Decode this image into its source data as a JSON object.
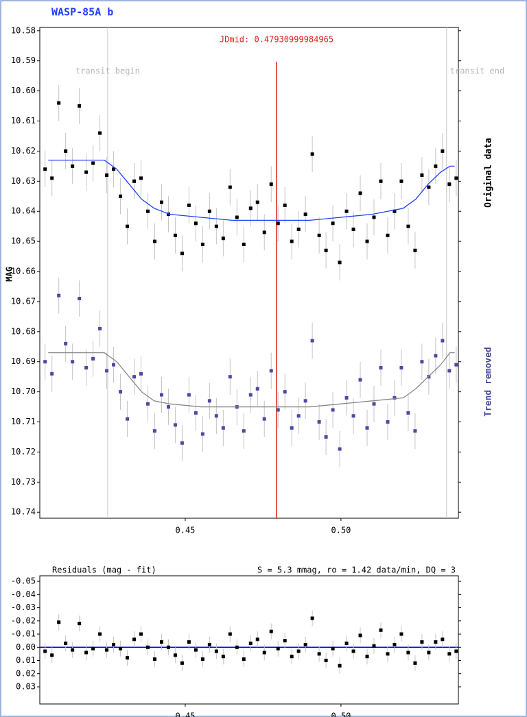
{
  "chart_data": [
    {
      "type": "scatter",
      "title": "WASP-85A b",
      "ylabel": "MAG",
      "xlim": [
        0.4033,
        0.5377
      ],
      "ylim": [
        10.5789,
        10.742
      ],
      "y_inverted": true,
      "xticks": [
        0.45,
        {
          "value": 0.5,
          "label": "0.50"
        }
      ],
      "yticks": [
        10.58,
        10.59,
        {
          "value": 10.6,
          "label": "10.60"
        },
        10.61,
        10.62,
        10.63,
        10.64,
        10.65,
        10.66,
        10.67,
        10.68,
        10.69,
        {
          "value": 10.7,
          "label": "10.70"
        },
        10.71,
        10.72,
        10.73,
        10.74
      ],
      "x": [
        0.405,
        0.4072,
        0.4094,
        0.4116,
        0.4138,
        0.416,
        0.4182,
        0.4204,
        0.4226,
        0.4248,
        0.427,
        0.4292,
        0.4314,
        0.4336,
        0.4358,
        0.438,
        0.4402,
        0.4424,
        0.4446,
        0.4468,
        0.449,
        0.4512,
        0.4534,
        0.4556,
        0.4578,
        0.46,
        0.4622,
        0.4644,
        0.4666,
        0.4688,
        0.471,
        0.4732,
        0.4754,
        0.4776,
        0.4798,
        0.482,
        0.4842,
        0.4864,
        0.4886,
        0.4908,
        0.493,
        0.4952,
        0.4974,
        0.4996,
        0.5018,
        0.504,
        0.5062,
        0.5084,
        0.5106,
        0.5128,
        0.515,
        0.5172,
        0.5194,
        0.5216,
        0.5238,
        0.526,
        0.5282,
        0.5304,
        0.5326,
        0.5348,
        0.537
      ],
      "series": [
        {
          "name": "Original data",
          "color": "#000000",
          "error": 0.006,
          "values": [
            10.626,
            10.629,
            10.604,
            10.62,
            10.625,
            10.605,
            10.627,
            10.624,
            10.614,
            10.628,
            10.626,
            10.635,
            10.645,
            10.63,
            10.629,
            10.64,
            10.65,
            10.637,
            10.641,
            10.648,
            10.654,
            10.638,
            10.644,
            10.651,
            10.64,
            10.645,
            10.649,
            10.632,
            10.642,
            10.651,
            10.639,
            10.637,
            10.647,
            10.631,
            10.644,
            10.638,
            10.65,
            10.646,
            10.641,
            10.621,
            10.648,
            10.653,
            10.644,
            10.657,
            10.64,
            10.646,
            10.634,
            10.65,
            10.642,
            10.63,
            10.648,
            10.64,
            10.63,
            10.645,
            10.653,
            10.628,
            10.632,
            10.625,
            10.62,
            10.631,
            10.629
          ]
        },
        {
          "name": "Trend removed",
          "color": "#4a4aa0",
          "error": 0.006,
          "values": [
            10.69,
            10.694,
            10.668,
            10.684,
            10.69,
            10.669,
            10.692,
            10.689,
            10.679,
            10.693,
            10.691,
            10.7,
            10.709,
            10.695,
            10.694,
            10.704,
            10.713,
            10.701,
            10.705,
            10.711,
            10.717,
            10.701,
            10.707,
            10.714,
            10.703,
            10.708,
            10.712,
            10.695,
            10.705,
            10.713,
            10.701,
            10.699,
            10.709,
            10.693,
            10.706,
            10.7,
            10.712,
            10.708,
            10.703,
            10.683,
            10.71,
            10.715,
            10.706,
            10.719,
            10.702,
            10.708,
            10.696,
            10.712,
            10.704,
            10.692,
            10.71,
            10.702,
            10.692,
            10.707,
            10.713,
            10.69,
            10.695,
            10.688,
            10.683,
            10.693,
            10.691
          ]
        }
      ],
      "fits": [
        {
          "color": "#1f3fff",
          "x": [
            0.406,
            0.424,
            0.428,
            0.432,
            0.436,
            0.44,
            0.445,
            0.455,
            0.465,
            0.4793,
            0.49,
            0.5,
            0.51,
            0.52,
            0.524,
            0.528,
            0.532,
            0.535,
            0.5365
          ],
          "values": [
            10.623,
            10.623,
            10.626,
            10.631,
            10.636,
            10.639,
            10.641,
            10.642,
            10.643,
            10.643,
            10.643,
            10.642,
            10.641,
            10.639,
            10.636,
            10.631,
            10.627,
            10.625,
            10.625
          ]
        },
        {
          "color": "#888888",
          "x": [
            0.406,
            0.424,
            0.428,
            0.432,
            0.436,
            0.44,
            0.445,
            0.455,
            0.465,
            0.4793,
            0.49,
            0.5,
            0.51,
            0.52,
            0.524,
            0.528,
            0.532,
            0.535,
            0.5365
          ],
          "values": [
            10.687,
            10.687,
            10.69,
            10.695,
            10.7,
            10.703,
            10.704,
            10.705,
            10.705,
            10.705,
            10.705,
            10.704,
            10.703,
            10.702,
            10.699,
            10.695,
            10.691,
            10.687,
            10.687
          ]
        }
      ],
      "vlines": [
        {
          "x": 0.4251,
          "label": "transit begin",
          "color": "#c8c8c8"
        },
        {
          "x": 0.5339,
          "label": "transit end",
          "color": "#c8c8c8"
        },
        {
          "x": 0.47930999984965,
          "label": "JDmid: 0.47930999984965",
          "color": "#e02020"
        }
      ]
    },
    {
      "type": "scatter",
      "title": "Residuals (mag - fit)",
      "subtitle": "S = 5.3 mmag, ro = 1.42 data/min, DQ = 3",
      "xlim": [
        0.4033,
        0.5377
      ],
      "ylim": [
        -0.0542,
        0.043
      ],
      "y_inverted": true,
      "xticks": [
        0.45,
        {
          "value": 0.5,
          "label": "0.50"
        }
      ],
      "yticks": [
        -0.05,
        -0.04,
        -0.03,
        -0.02,
        -0.01,
        {
          "value": 0,
          "label": "0.00"
        },
        0.01,
        0.02,
        0.03
      ],
      "reference_line": {
        "y": 0,
        "color": "#0000ff"
      },
      "x": [
        0.405,
        0.4072,
        0.4094,
        0.4116,
        0.4138,
        0.416,
        0.4182,
        0.4204,
        0.4226,
        0.4248,
        0.427,
        0.4292,
        0.4314,
        0.4336,
        0.4358,
        0.438,
        0.4402,
        0.4424,
        0.4446,
        0.4468,
        0.449,
        0.4512,
        0.4534,
        0.4556,
        0.4578,
        0.46,
        0.4622,
        0.4644,
        0.4666,
        0.4688,
        0.471,
        0.4732,
        0.4754,
        0.4776,
        0.4798,
        0.482,
        0.4842,
        0.4864,
        0.4886,
        0.4908,
        0.493,
        0.4952,
        0.4974,
        0.4996,
        0.5018,
        0.504,
        0.5062,
        0.5084,
        0.5106,
        0.5128,
        0.515,
        0.5172,
        0.5194,
        0.5216,
        0.5238,
        0.526,
        0.5282,
        0.5304,
        0.5326,
        0.5348,
        0.537
      ],
      "series": [
        {
          "color": "#000000",
          "error": 0.006,
          "values": [
            0.003,
            0.006,
            -0.019,
            -0.003,
            0.002,
            -0.018,
            0.004,
            0.001,
            -0.01,
            0.002,
            -0.002,
            0.001,
            0.008,
            -0.006,
            -0.01,
            0.0,
            0.009,
            -0.004,
            0.0,
            0.006,
            0.012,
            -0.004,
            0.002,
            0.009,
            -0.002,
            0.003,
            0.007,
            -0.01,
            0.0,
            0.009,
            -0.003,
            -0.006,
            0.004,
            -0.012,
            0.001,
            -0.005,
            0.007,
            0.003,
            -0.002,
            -0.022,
            0.005,
            0.01,
            0.001,
            0.014,
            -0.003,
            0.003,
            -0.009,
            0.007,
            -0.001,
            -0.013,
            0.005,
            -0.002,
            -0.01,
            0.004,
            0.012,
            -0.004,
            0.004,
            -0.004,
            -0.006,
            0.005,
            0.003
          ]
        }
      ]
    }
  ]
}
